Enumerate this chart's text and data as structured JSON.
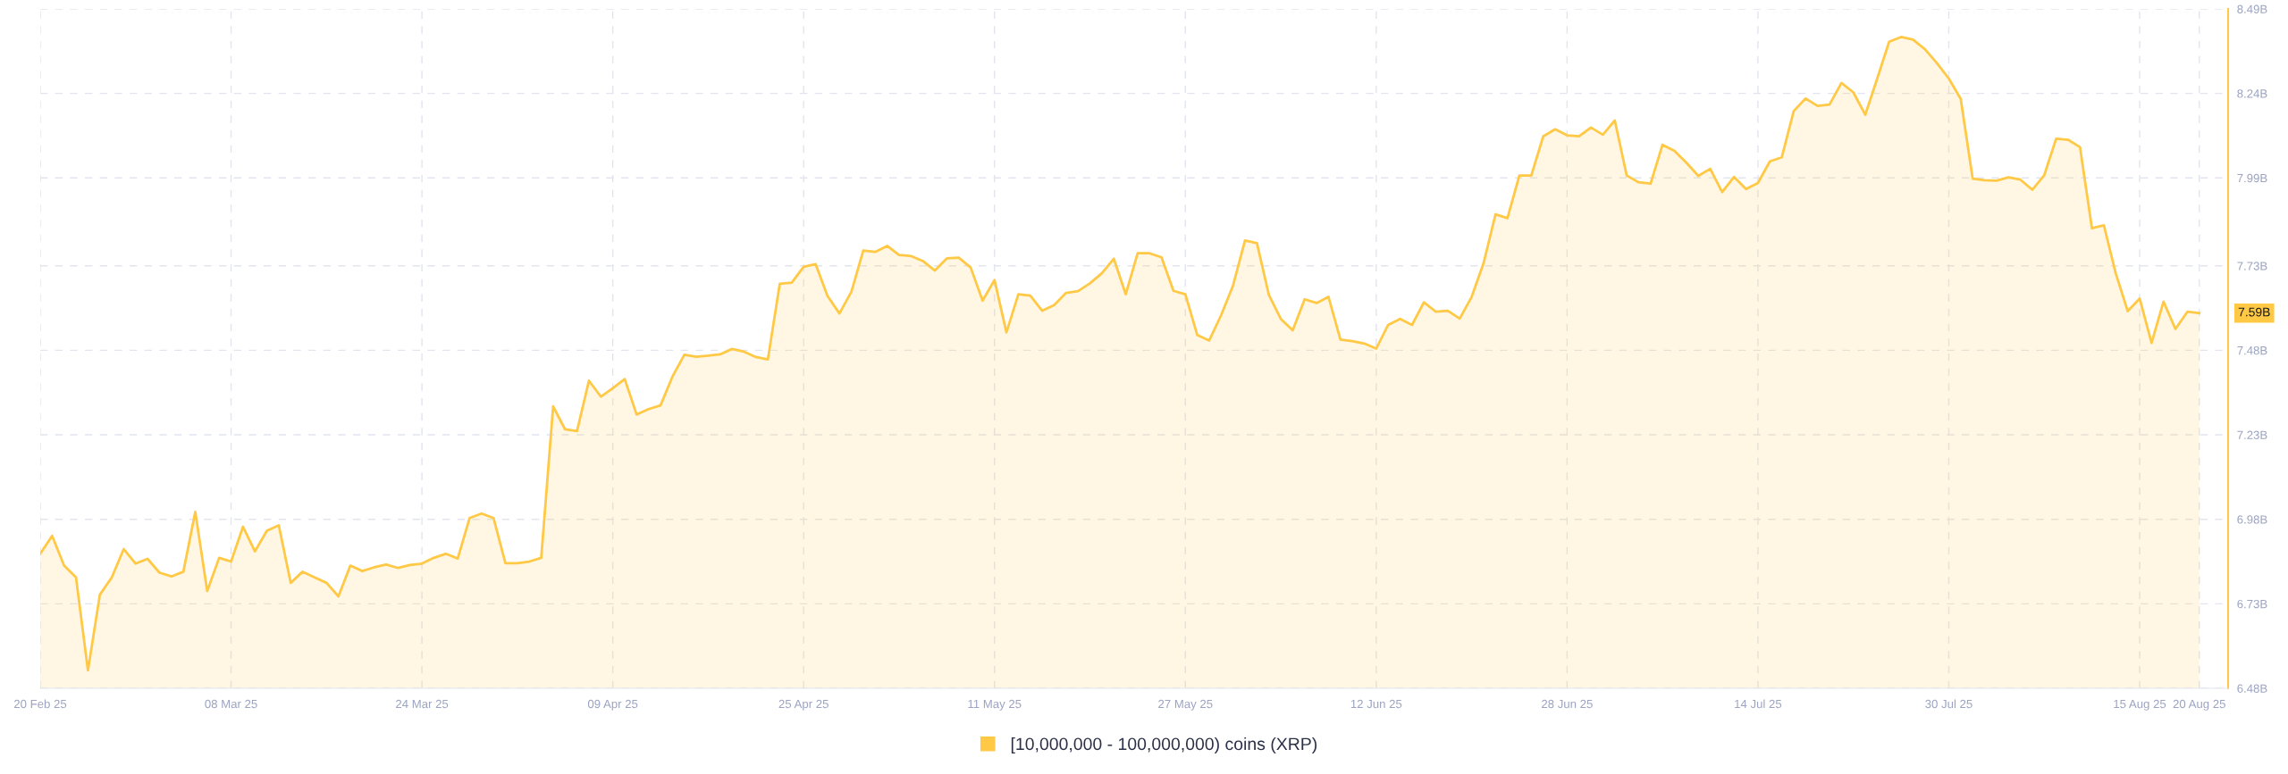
{
  "chart_data": {
    "type": "area",
    "x": [
      "2025-02-20",
      "2025-02-21",
      "2025-02-22",
      "2025-02-23",
      "2025-02-24",
      "2025-02-25",
      "2025-02-26",
      "2025-02-27",
      "2025-02-28",
      "2025-03-01",
      "2025-03-02",
      "2025-03-03",
      "2025-03-04",
      "2025-03-05",
      "2025-03-06",
      "2025-03-07",
      "2025-03-08",
      "2025-03-09",
      "2025-03-10",
      "2025-03-11",
      "2025-03-12",
      "2025-03-13",
      "2025-03-14",
      "2025-03-15",
      "2025-03-16",
      "2025-03-17",
      "2025-03-18",
      "2025-03-19",
      "2025-03-20",
      "2025-03-21",
      "2025-03-22",
      "2025-03-23",
      "2025-03-24",
      "2025-03-25",
      "2025-03-26",
      "2025-03-27",
      "2025-03-28",
      "2025-03-29",
      "2025-03-30",
      "2025-03-31",
      "2025-04-01",
      "2025-04-02",
      "2025-04-03",
      "2025-04-04",
      "2025-04-05",
      "2025-04-06",
      "2025-04-07",
      "2025-04-08",
      "2025-04-09",
      "2025-04-10",
      "2025-04-11",
      "2025-04-12",
      "2025-04-13",
      "2025-04-14",
      "2025-04-15",
      "2025-04-16",
      "2025-04-17",
      "2025-04-18",
      "2025-04-19",
      "2025-04-20",
      "2025-04-21",
      "2025-04-22",
      "2025-04-23",
      "2025-04-24",
      "2025-04-25",
      "2025-04-26",
      "2025-04-27",
      "2025-04-28",
      "2025-04-29",
      "2025-04-30",
      "2025-05-01",
      "2025-05-02",
      "2025-05-03",
      "2025-05-04",
      "2025-05-05",
      "2025-05-06",
      "2025-05-07",
      "2025-05-08",
      "2025-05-09",
      "2025-05-10",
      "2025-05-11",
      "2025-05-12",
      "2025-05-13",
      "2025-05-14",
      "2025-05-15",
      "2025-05-16",
      "2025-05-17",
      "2025-05-18",
      "2025-05-19",
      "2025-05-20",
      "2025-05-21",
      "2025-05-22",
      "2025-05-23",
      "2025-05-24",
      "2025-05-25",
      "2025-05-26",
      "2025-05-27",
      "2025-05-28",
      "2025-05-29",
      "2025-05-30",
      "2025-05-31",
      "2025-06-01",
      "2025-06-02",
      "2025-06-03",
      "2025-06-04",
      "2025-06-05",
      "2025-06-06",
      "2025-06-07",
      "2025-06-08",
      "2025-06-09",
      "2025-06-10",
      "2025-06-11",
      "2025-06-12",
      "2025-06-13",
      "2025-06-14",
      "2025-06-15",
      "2025-06-16",
      "2025-06-17",
      "2025-06-18",
      "2025-06-19",
      "2025-06-20",
      "2025-06-21",
      "2025-06-22",
      "2025-06-23",
      "2025-06-24",
      "2025-06-25",
      "2025-06-26",
      "2025-06-27",
      "2025-06-28",
      "2025-06-29",
      "2025-06-30",
      "2025-07-01",
      "2025-07-02",
      "2025-07-03",
      "2025-07-04",
      "2025-07-05",
      "2025-07-06",
      "2025-07-07",
      "2025-07-08",
      "2025-07-09",
      "2025-07-10",
      "2025-07-11",
      "2025-07-12",
      "2025-07-13",
      "2025-07-14",
      "2025-07-15",
      "2025-07-16",
      "2025-07-17",
      "2025-07-18",
      "2025-07-19",
      "2025-07-20",
      "2025-07-21",
      "2025-07-22",
      "2025-07-23",
      "2025-07-24",
      "2025-07-25",
      "2025-07-26",
      "2025-07-27",
      "2025-07-28",
      "2025-07-29",
      "2025-07-30",
      "2025-07-31",
      "2025-08-01",
      "2025-08-02",
      "2025-08-03",
      "2025-08-04",
      "2025-08-05",
      "2025-08-06",
      "2025-08-07",
      "2025-08-08",
      "2025-08-09",
      "2025-08-10",
      "2025-08-11",
      "2025-08-12",
      "2025-08-13",
      "2025-08-14",
      "2025-08-15",
      "2025-08-16",
      "2025-08-17",
      "2025-08-18",
      "2025-08-19",
      "2025-08-20"
    ],
    "series": [
      {
        "name": "[10,000,000 - 100,000,000) coins (XRP)",
        "color": "#ffc845",
        "values": [
          6.878,
          6.931,
          6.843,
          6.808,
          6.533,
          6.757,
          6.808,
          6.892,
          6.849,
          6.863,
          6.822,
          6.811,
          6.825,
          7.002,
          6.768,
          6.866,
          6.855,
          6.958,
          6.885,
          6.946,
          6.962,
          6.792,
          6.825,
          6.808,
          6.792,
          6.752,
          6.843,
          6.827,
          6.838,
          6.846,
          6.836,
          6.845,
          6.849,
          6.866,
          6.878,
          6.864,
          6.984,
          6.997,
          6.984,
          6.85,
          6.85,
          6.855,
          6.866,
          7.314,
          7.246,
          7.241,
          7.39,
          7.343,
          7.368,
          7.395,
          7.29,
          7.306,
          7.317,
          7.402,
          7.467,
          7.461,
          7.464,
          7.468,
          7.484,
          7.476,
          7.46,
          7.453,
          7.677,
          7.68,
          7.727,
          7.735,
          7.641,
          7.589,
          7.653,
          7.775,
          7.771,
          7.789,
          7.762,
          7.759,
          7.744,
          7.716,
          7.752,
          7.754,
          7.725,
          7.627,
          7.688,
          7.533,
          7.646,
          7.642,
          7.597,
          7.614,
          7.65,
          7.655,
          7.678,
          7.708,
          7.751,
          7.646,
          7.767,
          7.767,
          7.755,
          7.656,
          7.646,
          7.525,
          7.509,
          7.584,
          7.672,
          7.805,
          7.797,
          7.644,
          7.573,
          7.539,
          7.631,
          7.62,
          7.638,
          7.512,
          7.507,
          7.5,
          7.485,
          7.555,
          7.573,
          7.555,
          7.622,
          7.594,
          7.597,
          7.574,
          7.638,
          7.738,
          7.882,
          7.871,
          7.997,
          7.997,
          8.113,
          8.134,
          8.116,
          8.113,
          8.139,
          8.118,
          8.16,
          7.997,
          7.977,
          7.973,
          8.088,
          8.07,
          8.035,
          7.996,
          8.017,
          7.948,
          7.993,
          7.957,
          7.975,
          8.039,
          8.051,
          8.188,
          8.225,
          8.203,
          8.207,
          8.271,
          8.243,
          8.177,
          8.284,
          8.393,
          8.407,
          8.399,
          8.371,
          8.33,
          8.284,
          8.224,
          7.988,
          7.983,
          7.982,
          7.992,
          7.985,
          7.955,
          7.998,
          8.106,
          8.103,
          8.081,
          7.841,
          7.85,
          7.707,
          7.596,
          7.633,
          7.502,
          7.624,
          7.543,
          7.594,
          7.59
        ]
      }
    ],
    "xlim": [
      "2025-02-20",
      "2025-08-22T10:00"
    ],
    "xticks": [
      {
        "value": "2025-02-20",
        "label": "20 Feb 25"
      },
      {
        "value": "2025-03-08",
        "label": "08 Mar 25"
      },
      {
        "value": "2025-03-24",
        "label": "24 Mar 25"
      },
      {
        "value": "2025-04-09",
        "label": "09 Apr 25"
      },
      {
        "value": "2025-04-25",
        "label": "25 Apr 25"
      },
      {
        "value": "2025-05-11",
        "label": "11 May 25"
      },
      {
        "value": "2025-05-27",
        "label": "27 May 25"
      },
      {
        "value": "2025-06-12",
        "label": "12 Jun 25"
      },
      {
        "value": "2025-06-28",
        "label": "28 Jun 25"
      },
      {
        "value": "2025-07-14",
        "label": "14 Jul 25"
      },
      {
        "value": "2025-07-30",
        "label": "30 Jul 25"
      },
      {
        "value": "2025-08-15",
        "label": "15 Aug 25"
      },
      {
        "value": "2025-08-20",
        "label": "20 Aug 25"
      }
    ],
    "ylim": [
      6.48,
      8.49
    ],
    "yticks": [
      {
        "value": 6.48,
        "label": "6.48B"
      },
      {
        "value": 6.73,
        "label": "6.73B"
      },
      {
        "value": 6.98,
        "label": "6.98B"
      },
      {
        "value": 7.23,
        "label": "7.23B"
      },
      {
        "value": 7.48,
        "label": "7.48B"
      },
      {
        "value": 7.73,
        "label": "7.73B"
      },
      {
        "value": 7.99,
        "label": "7.99B"
      },
      {
        "value": 8.24,
        "label": "8.24B"
      },
      {
        "value": 8.49,
        "label": "8.49B"
      }
    ],
    "grid": true,
    "legend": "bottom",
    "annotations": [
      "7.59B"
    ]
  }
}
